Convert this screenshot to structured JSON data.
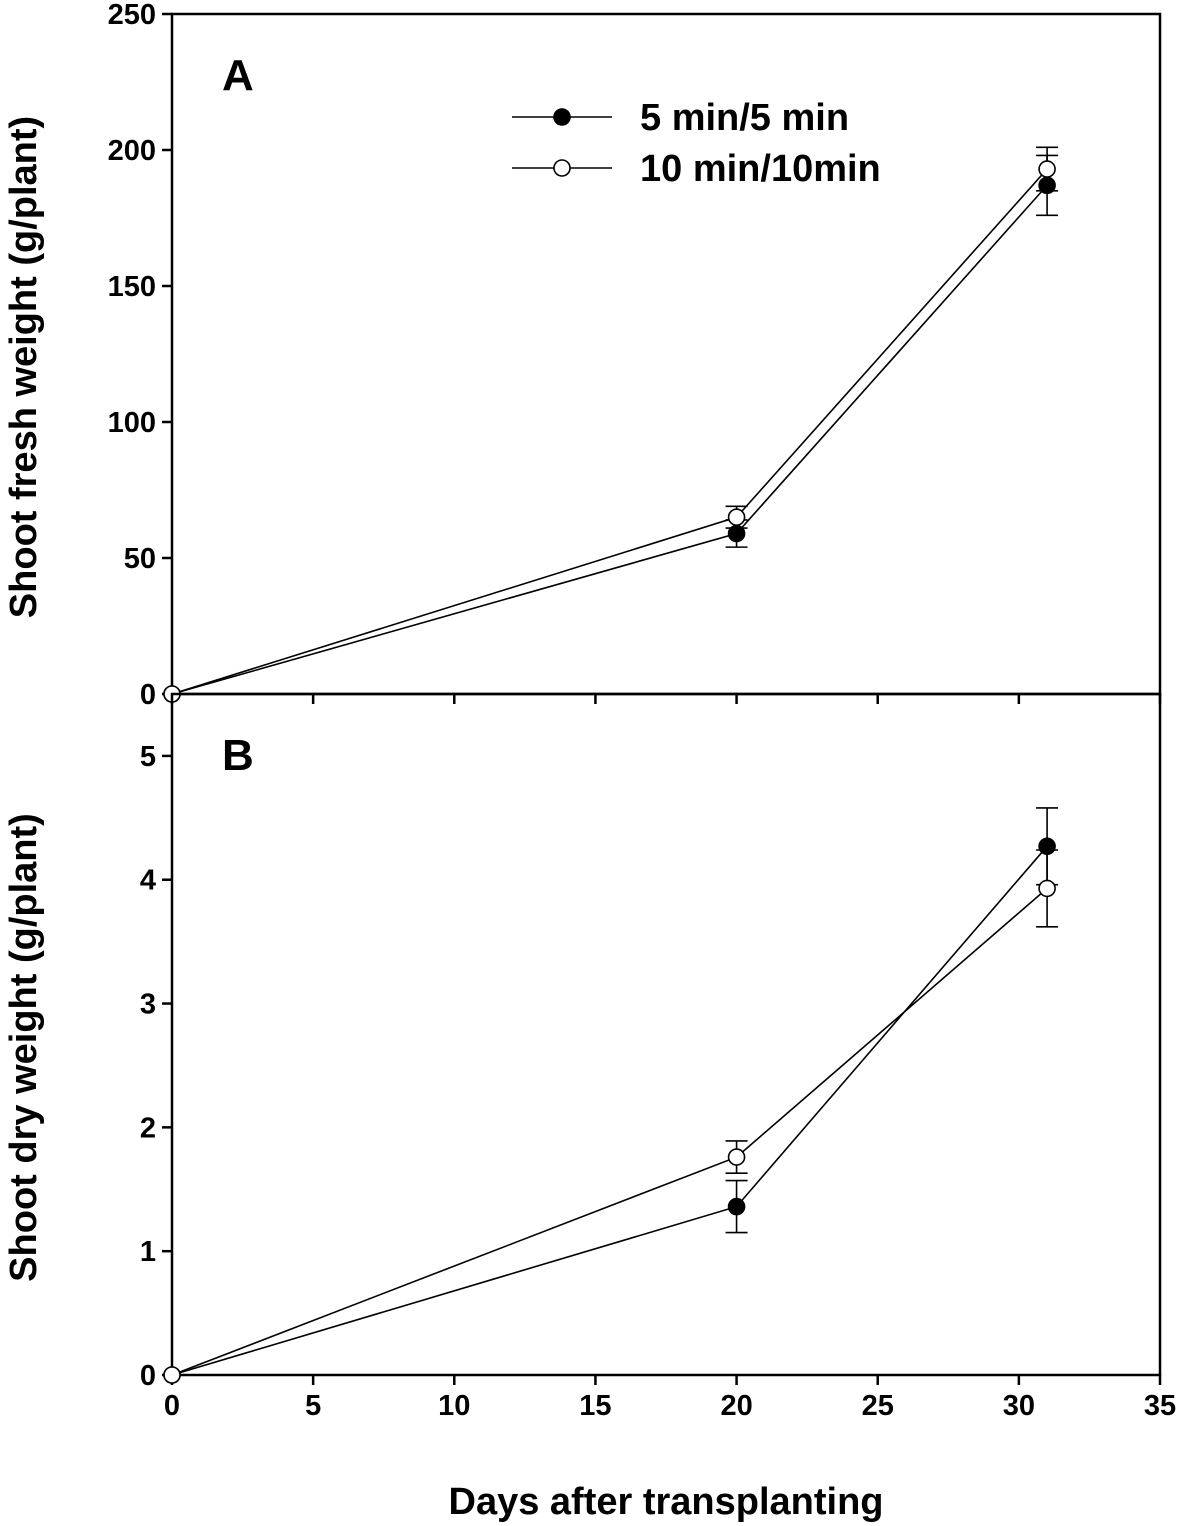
{
  "chart_data": [
    {
      "type": "line",
      "panel_label": "A",
      "ylabel": "Shoot fresh weight (g/plant)",
      "ylim": [
        0,
        250
      ],
      "yticks": [
        "0",
        "50",
        "100",
        "150",
        "200",
        "250"
      ],
      "xlim": [
        0,
        35
      ],
      "grid": false,
      "legend": {
        "placement": "top-center",
        "entries": [
          "5 min/5 min",
          "10 min/10min"
        ]
      },
      "series": [
        {
          "name": "5 min/5 min",
          "marker": "filled-circle",
          "x": [
            0,
            20,
            31
          ],
          "y": [
            0,
            59,
            187
          ],
          "error": [
            0,
            5,
            11
          ]
        },
        {
          "name": "10 min/10min",
          "marker": "open-circle",
          "x": [
            0,
            20,
            31
          ],
          "y": [
            0,
            65,
            193
          ],
          "error": [
            0,
            4,
            8
          ]
        }
      ]
    },
    {
      "type": "line",
      "panel_label": "B",
      "ylabel": "Shoot dry weight (g/plant)",
      "xlabel": "Days after transplanting",
      "ylim": [
        0,
        5.5
      ],
      "yticks": [
        "0",
        "1",
        "2",
        "3",
        "4",
        "5"
      ],
      "xlim": [
        0,
        35
      ],
      "xticks": [
        "0",
        "5",
        "10",
        "15",
        "20",
        "25",
        "30",
        "35"
      ],
      "grid": false,
      "series": [
        {
          "name": "5 min/5 min",
          "marker": "filled-circle",
          "x": [
            0,
            20,
            31
          ],
          "y": [
            0,
            1.36,
            4.27
          ],
          "error": [
            0,
            0.21,
            0.31
          ]
        },
        {
          "name": "10 min/10min",
          "marker": "open-circle",
          "x": [
            0,
            20,
            31
          ],
          "y": [
            0,
            1.76,
            3.93
          ],
          "error": [
            0,
            0.13,
            0.31
          ]
        }
      ]
    }
  ]
}
